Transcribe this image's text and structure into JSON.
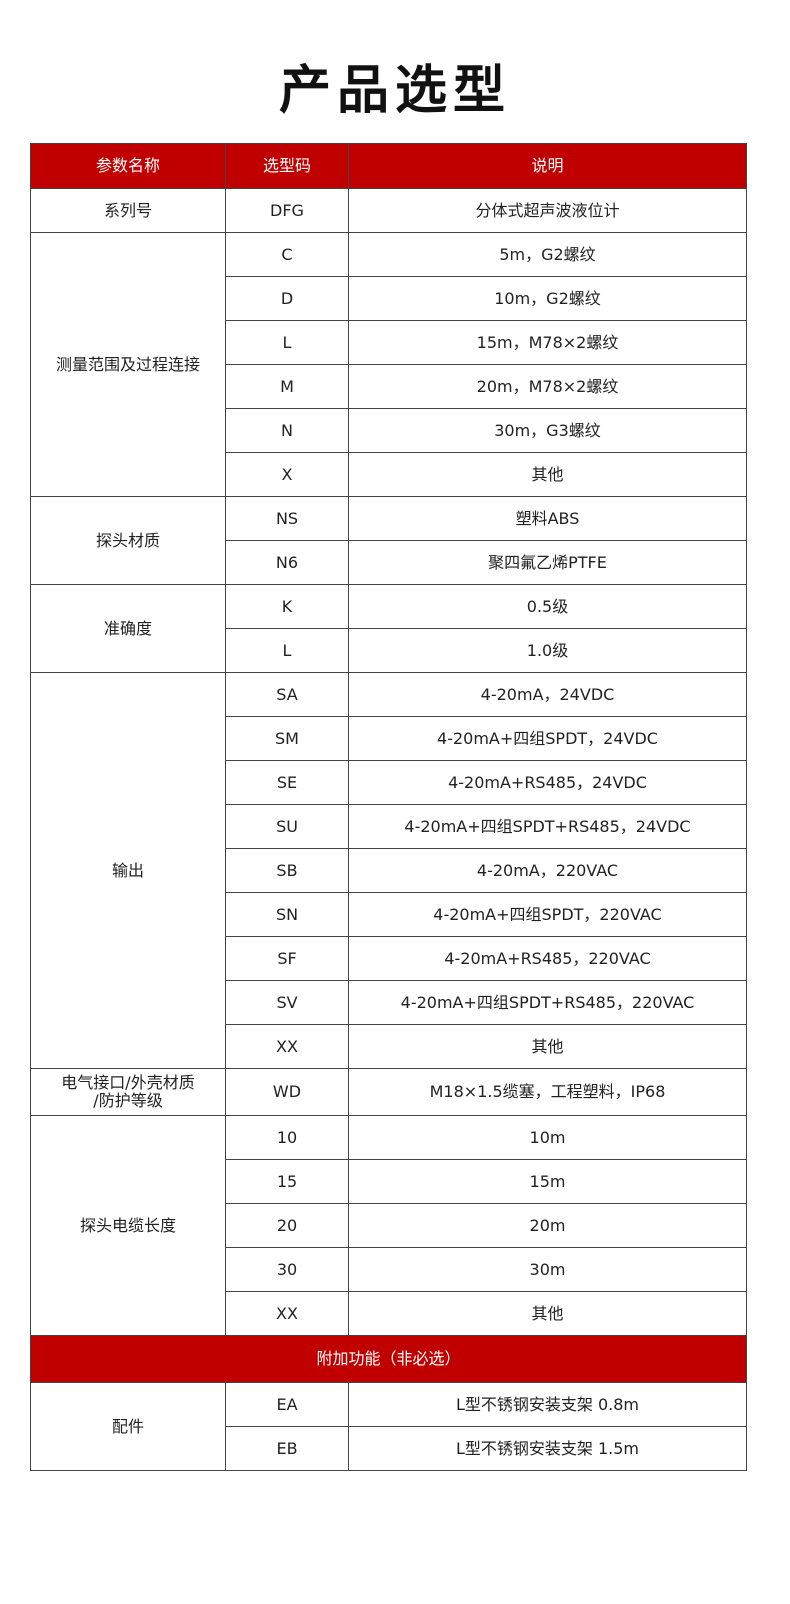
{
  "title": "产品选型",
  "colors": {
    "header_bg": "#c00000",
    "header_text": "#ffffff",
    "border": "#444444"
  },
  "header": [
    "参数名称",
    "选型码",
    "说明"
  ],
  "groups": [
    {
      "name": "系列号",
      "items": [
        [
          "DFG",
          "分体式超声波液位计"
        ]
      ]
    },
    {
      "name": "测量范围及过程连接",
      "items": [
        [
          "C",
          "5m，G2螺纹"
        ],
        [
          "D",
          "10m，G2螺纹"
        ],
        [
          "L",
          "15m，M78×2螺纹"
        ],
        [
          "M",
          "20m，M78×2螺纹"
        ],
        [
          "N",
          "30m，G3螺纹"
        ],
        [
          "X",
          "其他"
        ]
      ]
    },
    {
      "name": "探头材质",
      "items": [
        [
          "NS",
          "塑料ABS"
        ],
        [
          "N6",
          "聚四氟乙烯PTFE"
        ]
      ]
    },
    {
      "name": "准确度",
      "items": [
        [
          "K",
          "0.5级"
        ],
        [
          "L",
          "1.0级"
        ]
      ]
    },
    {
      "name": "输出",
      "items": [
        [
          "SA",
          "4-20mA，24VDC"
        ],
        [
          "SM",
          "4-20mA+四组SPDT，24VDC"
        ],
        [
          "SE",
          "4-20mA+RS485，24VDC"
        ],
        [
          "SU",
          "4-20mA+四组SPDT+RS485，24VDC"
        ],
        [
          "SB",
          "4-20mA，220VAC"
        ],
        [
          "SN",
          "4-20mA+四组SPDT，220VAC"
        ],
        [
          "SF",
          "4-20mA+RS485，220VAC"
        ],
        [
          "SV",
          "4-20mA+四组SPDT+RS485，220VAC"
        ],
        [
          "XX",
          "其他"
        ]
      ]
    },
    {
      "name": "电气接口/外壳材质\n/防护等级",
      "items": [
        [
          "WD",
          "M18×1.5缆塞，工程塑料，IP68"
        ]
      ]
    },
    {
      "name": "探头电缆长度",
      "items": [
        [
          "10",
          "10m"
        ],
        [
          "15",
          "15m"
        ],
        [
          "20",
          "20m"
        ],
        [
          "30",
          "30m"
        ],
        [
          "XX",
          "其他"
        ]
      ]
    }
  ],
  "section2_title": "附加功能（非必选）",
  "groups2": [
    {
      "name": "配件",
      "items": [
        [
          "EA",
          "L型不锈钢安装支架 0.8m"
        ],
        [
          "EB",
          "L型不锈钢安装支架 1.5m"
        ]
      ]
    }
  ]
}
